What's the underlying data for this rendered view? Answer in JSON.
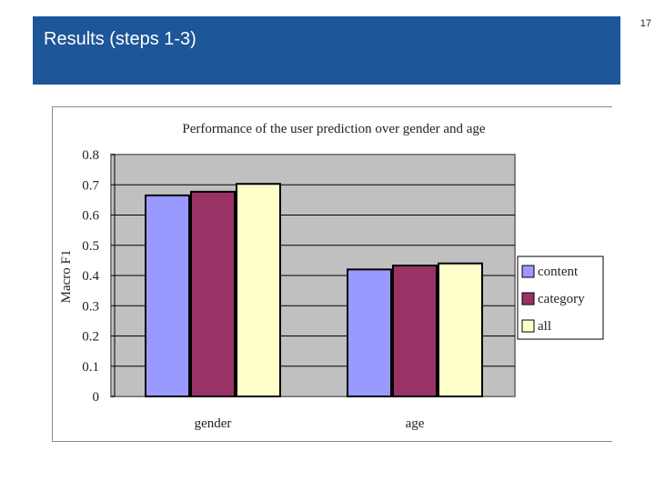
{
  "slide": {
    "title": "Results (steps 1-3)",
    "page_number": "17"
  },
  "colors": {
    "header_bg": "#1d5699",
    "plot_bg": "#c0c0c0",
    "content": "#9999ff",
    "category": "#993366",
    "all": "#ffffcc"
  },
  "chart_data": {
    "type": "bar",
    "title": "Performance of the user prediction over gender and age",
    "xlabel": "",
    "ylabel": "Macro F1",
    "ylim": [
      0,
      0.8
    ],
    "yticks": [
      "0",
      "0.1",
      "0.2",
      "0.3",
      "0.4",
      "0.5",
      "0.6",
      "0.7",
      "0.8"
    ],
    "categories": [
      "gender",
      "age"
    ],
    "series": [
      {
        "name": "content",
        "color": "#9999ff",
        "values": [
          0.665,
          0.42
        ]
      },
      {
        "name": "category",
        "color": "#993366",
        "values": [
          0.677,
          0.433
        ]
      },
      {
        "name": "all",
        "color": "#ffffcc",
        "values": [
          0.703,
          0.44
        ]
      }
    ],
    "grid": true,
    "legend_position": "right"
  }
}
